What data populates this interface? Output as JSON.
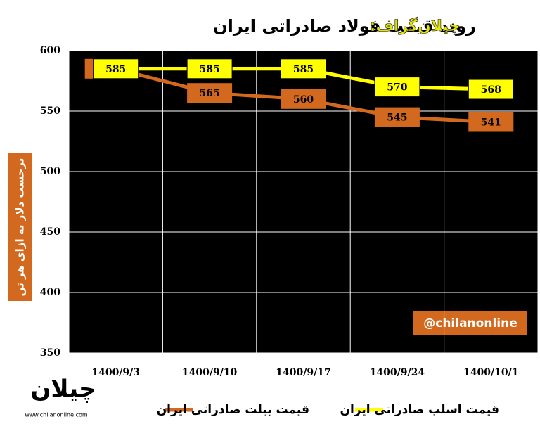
{
  "chart_data": {
    "type": "line",
    "title_prefix": "چیلان‌گراف:",
    "title": "روند قیمت فولاد صادراتی ایران",
    "y_label": "برحسب دلار به ازای هر تن",
    "annotation": "@chilanonline",
    "logo": "چیلان",
    "website": "www.chilanonline.com",
    "categories": [
      "1400/9/3",
      "1400/9/10",
      "1400/9/17",
      "1400/9/24",
      "1400/10/1"
    ],
    "series": [
      {
        "name": "قیمت اسلب صادراتی ایران",
        "color": "#ffff00",
        "values": [
          585,
          585,
          585,
          570,
          568
        ]
      },
      {
        "name": "قیمت بیلت صادراتی ایران",
        "color": "#d2691e",
        "values": [
          585,
          565,
          560,
          545,
          541
        ]
      }
    ],
    "ylim": [
      350,
      600
    ],
    "yticks": [
      350,
      400,
      450,
      500,
      550,
      600
    ],
    "grid": true
  }
}
